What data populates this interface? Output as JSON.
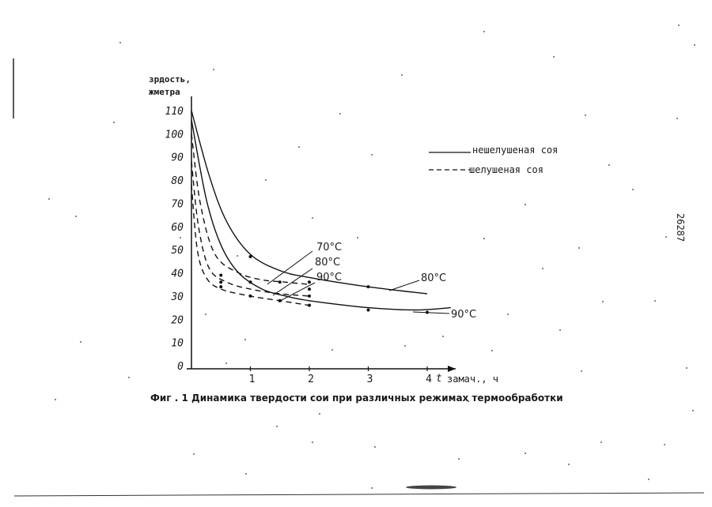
{
  "chart_data": {
    "type": "line",
    "title": "",
    "caption": "Фиг . 1 Динамика твердости сои при различных режимах термообработки",
    "ylabel_line1": "зрдость,",
    "ylabel_line2": "жметра",
    "xlabel_prefix": "t",
    "xlabel": "замач., ч",
    "xlim": [
      0,
      4.4
    ],
    "ylim": [
      0,
      110
    ],
    "grid": false,
    "legend_position": "top-right",
    "y_ticks": [
      {
        "label": "110",
        "value": 110
      },
      {
        "label": "100",
        "value": 100
      },
      {
        "label": "90",
        "value": 90
      },
      {
        "label": "80",
        "value": 80
      },
      {
        "label": "70",
        "value": 70
      },
      {
        "label": "60",
        "value": 60
      },
      {
        "label": "50",
        "value": 50
      },
      {
        "label": "40",
        "value": 40
      },
      {
        "label": "30",
        "value": 30
      },
      {
        "label": "20",
        "value": 20
      },
      {
        "label": "10",
        "value": 10
      },
      {
        "label": "0",
        "value": 0
      }
    ],
    "x_ticks": [
      {
        "label": "1",
        "value": 1
      },
      {
        "label": "2",
        "value": 2
      },
      {
        "label": "3",
        "value": 3
      },
      {
        "label": "4",
        "value": 4
      }
    ],
    "legend": [
      {
        "label": "нешелушеная соя",
        "style": "solid"
      },
      {
        "label": "шелушеная соя",
        "style": "dashed"
      }
    ],
    "curve_labels": [
      "70°C",
      "80°C",
      "90°C",
      "80°C",
      "90°C"
    ],
    "series": [
      {
        "style": "solid",
        "x": [
          0,
          0.3,
          0.6,
          1,
          1.5,
          2,
          3,
          4
        ],
        "y": [
          110,
          82,
          62,
          48,
          41,
          38,
          34,
          31
        ],
        "points": [
          [
            1,
            47
          ],
          [
            3,
            34
          ]
        ]
      },
      {
        "style": "solid",
        "x": [
          0,
          0.25,
          0.5,
          0.8,
          1.2,
          1.6,
          2,
          3,
          3.8,
          4.4
        ],
        "y": [
          106,
          72,
          52,
          40,
          33,
          30,
          28,
          25,
          24,
          25
        ],
        "points": [
          [
            1,
            36
          ],
          [
            2,
            30
          ],
          [
            3,
            24
          ],
          [
            4,
            23
          ]
        ]
      },
      {
        "style": "dashed",
        "x": [
          0,
          0.15,
          0.4,
          0.8,
          1.2,
          1.6,
          2
        ],
        "y": [
          100,
          70,
          48,
          40,
          37,
          36,
          35
        ],
        "points": [
          [
            0.5,
            39
          ],
          [
            1.5,
            36
          ],
          [
            2,
            36
          ]
        ]
      },
      {
        "style": "dashed",
        "x": [
          0,
          0.12,
          0.3,
          0.6,
          1,
          1.5,
          2
        ],
        "y": [
          88,
          60,
          42,
          36,
          33,
          31,
          30
        ],
        "points": [
          [
            0.5,
            36
          ],
          [
            1,
            36
          ],
          [
            2,
            33
          ]
        ]
      },
      {
        "style": "dashed",
        "x": [
          0,
          0.1,
          0.25,
          0.5,
          1,
          1.5,
          2
        ],
        "y": [
          78,
          50,
          38,
          33,
          30,
          28,
          26
        ],
        "points": [
          [
            0.5,
            34
          ],
          [
            1,
            30
          ],
          [
            1.5,
            28
          ],
          [
            2,
            26
          ]
        ]
      }
    ]
  },
  "side_number": "26287"
}
